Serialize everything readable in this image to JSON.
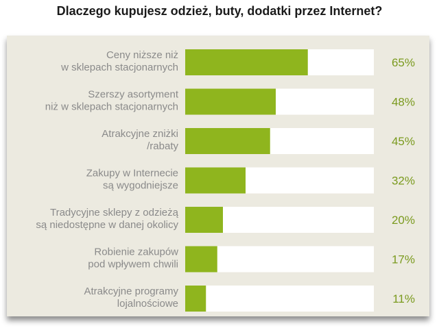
{
  "chart_data": {
    "type": "bar",
    "orientation": "horizontal",
    "title": "Dlaczego kupujesz odzież, buty, dodatki przez Internet?",
    "categories": [
      [
        "Ceny niższe niż",
        "w sklepach stacjonarnych"
      ],
      [
        "Szerszy asortyment",
        "niż w sklepach stacjonarnych"
      ],
      [
        "Atrakcyjne zniżki",
        "/rabaty"
      ],
      [
        "Zakupy w Internecie",
        "są wygodniejsze"
      ],
      [
        "Tradycyjne sklepy z odzieżą",
        "są niedostępne w danej okolicy"
      ],
      [
        "Robienie zakupów",
        "pod wpływem chwili"
      ],
      [
        "Atrakcyjne programy",
        "lojalnościowe"
      ]
    ],
    "values": [
      65,
      48,
      45,
      32,
      20,
      17,
      11
    ],
    "value_labels": [
      "65%",
      "48%",
      "45%",
      "32%",
      "20%",
      "17%",
      "11%"
    ],
    "unit": "%",
    "xlim": [
      0,
      100
    ],
    "colors": {
      "bar": "#8fb51e",
      "track": "#ffffff",
      "panel": "#eceae0",
      "value_text": "#7a9a1e"
    }
  }
}
